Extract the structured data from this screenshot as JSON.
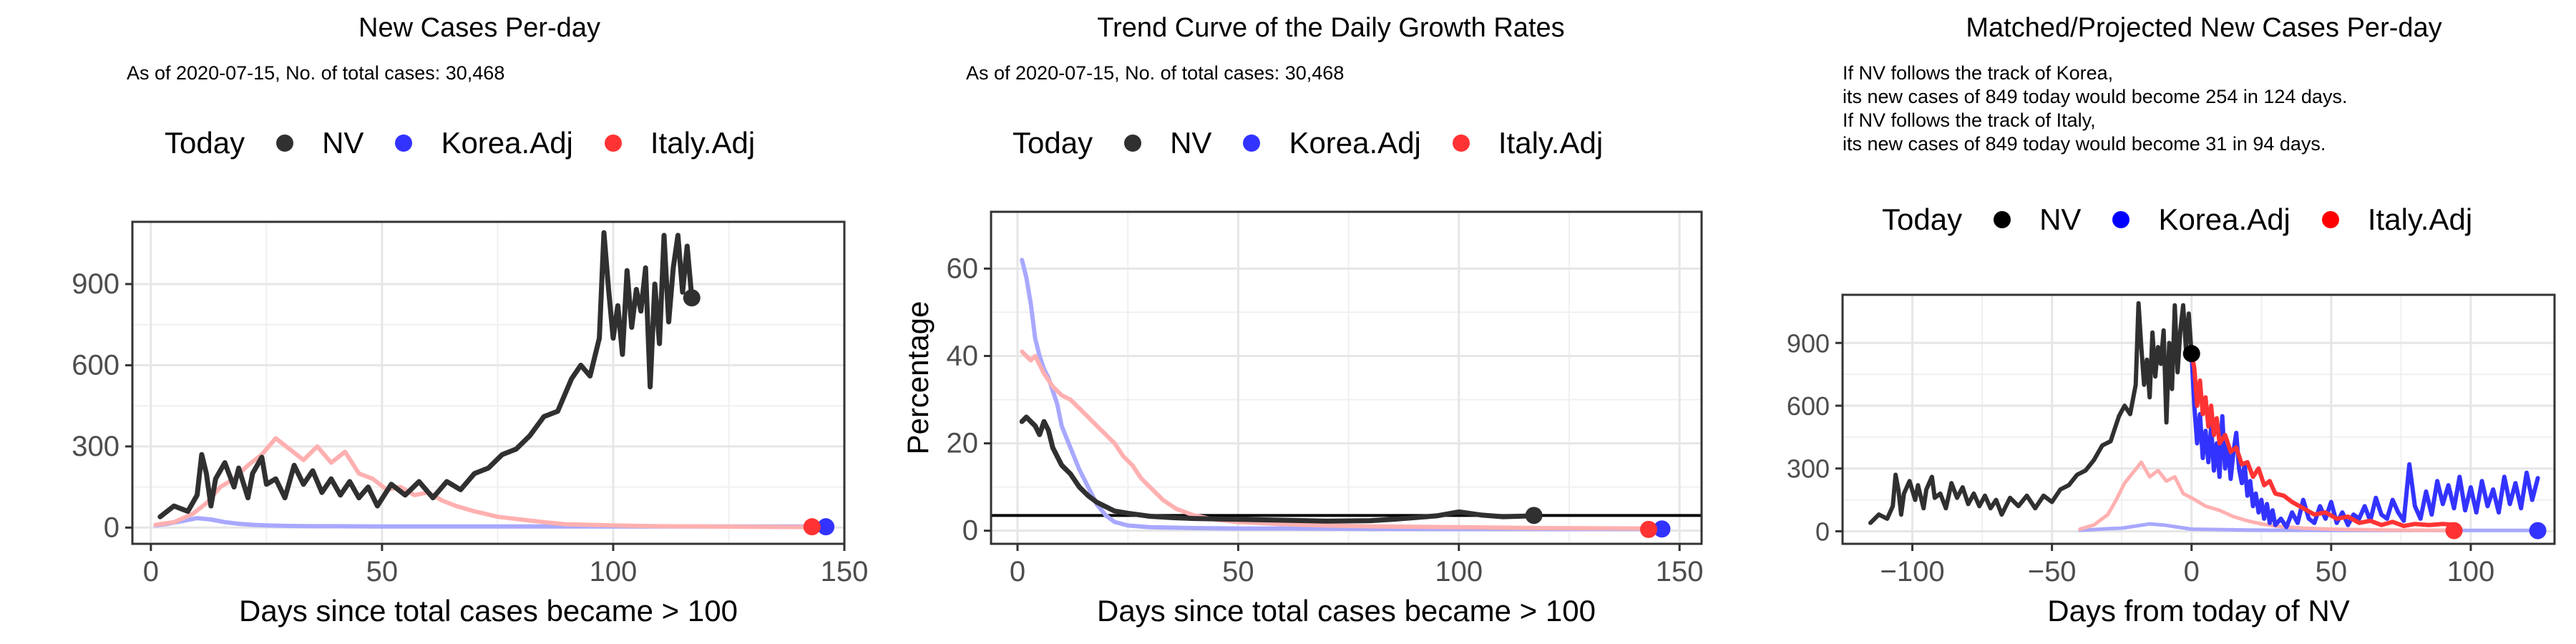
{
  "panels": [
    {
      "title": "New Cases Per-day",
      "subtitle": [
        "As of 2020-07-15, No. of total cases: 30,468"
      ],
      "legend": {
        "title": "Today",
        "items": [
          "NV",
          "Korea.Adj",
          "Italy.Adj"
        ]
      }
    },
    {
      "title": "Trend Curve of the Daily Growth Rates",
      "subtitle": [
        "As of 2020-07-15, No. of total cases: 30,468"
      ],
      "legend": {
        "title": "Today",
        "items": [
          "NV",
          "Korea.Adj",
          "Italy.Adj"
        ]
      }
    },
    {
      "title": "Matched/Projected New Cases Per-day",
      "subtitle": [
        "If NV follows the track of Korea,",
        "its new cases of 849 today would become 254 in 124 days.",
        "If NV follows the track of Italy,",
        "its new cases of 849 today would become 31 in 94 days."
      ],
      "legend": {
        "title": "Today",
        "items": [
          "NV",
          "Korea.Adj",
          "Italy.Adj"
        ]
      }
    }
  ],
  "colors": {
    "nv": "#303030",
    "nv_dot": "#000000",
    "korea": "#3333ff",
    "korea_faint": "#a8a8ff",
    "italy": "#ff3333",
    "italy_faint": "#ffb0b0",
    "legend_nv": "#303030",
    "legend_korea": "#3333ff",
    "legend_italy": "#ff3333",
    "legend3_nv": "#000000",
    "legend3_korea": "#0000ff",
    "legend3_italy": "#ff0000"
  },
  "chart_data": [
    {
      "type": "line",
      "title": "New Cases Per-day",
      "xlabel": "Days since total cases became > 100",
      "ylabel": "",
      "xlim": [
        -4,
        150
      ],
      "ylim": [
        -60,
        1130
      ],
      "xticks": [
        0,
        50,
        100,
        150
      ],
      "yticks": [
        0,
        300,
        600,
        900
      ],
      "grid": true,
      "legend_position": "top",
      "series": [
        {
          "name": "NV",
          "x": [
            2,
            5,
            8,
            10,
            11,
            12,
            13,
            14,
            16,
            18,
            19,
            21,
            22,
            24,
            25,
            27,
            29,
            31,
            33,
            35,
            37,
            39,
            41,
            43,
            45,
            47,
            49,
            52,
            55,
            58,
            61,
            64,
            67,
            70,
            73,
            76,
            79,
            82,
            85,
            88,
            91,
            93,
            95,
            97,
            98,
            99,
            100,
            101,
            102,
            103,
            104,
            105,
            106,
            107,
            108,
            109,
            110,
            111,
            112,
            113,
            114,
            115,
            116,
            117
          ],
          "y": [
            40,
            80,
            60,
            120,
            270,
            200,
            80,
            180,
            240,
            150,
            220,
            110,
            200,
            260,
            160,
            180,
            110,
            230,
            160,
            210,
            130,
            180,
            120,
            170,
            110,
            150,
            80,
            160,
            120,
            170,
            110,
            170,
            140,
            200,
            220,
            270,
            290,
            340,
            410,
            430,
            550,
            600,
            560,
            700,
            1090,
            880,
            700,
            820,
            640,
            950,
            740,
            880,
            800,
            960,
            520,
            900,
            680,
            1080,
            760,
            960,
            1080,
            870,
            1040,
            849
          ]
        },
        {
          "name": "Korea.Adj",
          "x": [
            1,
            4,
            7,
            10,
            13,
            16,
            19,
            22,
            25,
            30,
            35,
            40,
            50,
            60,
            70,
            80,
            90,
            100,
            110,
            120,
            130,
            140,
            146
          ],
          "y": [
            8,
            15,
            25,
            35,
            30,
            20,
            14,
            10,
            8,
            6,
            5,
            5,
            4,
            4,
            4,
            4,
            4,
            4,
            4,
            4,
            4,
            4,
            4
          ]
        },
        {
          "name": "Italy.Adj",
          "x": [
            1,
            5,
            9,
            12,
            15,
            18,
            21,
            24,
            27,
            30,
            33,
            36,
            39,
            42,
            45,
            48,
            51,
            54,
            57,
            60,
            63,
            66,
            70,
            75,
            80,
            85,
            90,
            100,
            110,
            120,
            130,
            143
          ],
          "y": [
            10,
            20,
            50,
            90,
            150,
            180,
            230,
            270,
            330,
            290,
            250,
            300,
            240,
            280,
            200,
            180,
            140,
            150,
            120,
            130,
            100,
            80,
            60,
            40,
            30,
            20,
            12,
            8,
            5,
            4,
            3,
            2
          ]
        }
      ],
      "today_points": [
        {
          "name": "NV",
          "x": 117,
          "y": 849
        },
        {
          "name": "Korea.Adj",
          "x": 146,
          "y": 3
        },
        {
          "name": "Italy.Adj",
          "x": 143,
          "y": 3
        }
      ]
    },
    {
      "type": "line",
      "title": "Trend Curve of the Daily Growth Rates",
      "xlabel": "Days since total cases became > 100",
      "ylabel": "Percentage",
      "xlim": [
        -6,
        155
      ],
      "ylim": [
        -3,
        73
      ],
      "xticks": [
        0,
        50,
        100,
        150
      ],
      "yticks": [
        0,
        20,
        40,
        60
      ],
      "grid": true,
      "hline": 3.5,
      "legend_position": "top",
      "series": [
        {
          "name": "NV",
          "x": [
            1,
            2,
            3,
            4,
            5,
            6,
            7,
            8,
            9,
            10,
            12,
            14,
            16,
            18,
            20,
            22,
            25,
            30,
            35,
            40,
            50,
            60,
            70,
            80,
            85,
            90,
            95,
            100,
            105,
            110,
            117
          ],
          "y": [
            25,
            26,
            25,
            24,
            22,
            25,
            23,
            19,
            17,
            15,
            13,
            10,
            8,
            6.5,
            5.5,
            4.5,
            4,
            3.3,
            3,
            2.8,
            2.6,
            2.4,
            2.2,
            2.3,
            2.6,
            3,
            3.4,
            4.3,
            3.6,
            3.2,
            3.4
          ]
        },
        {
          "name": "Korea.Adj",
          "x": [
            1,
            2,
            3,
            4,
            5,
            6,
            7,
            8,
            9,
            10,
            12,
            14,
            16,
            18,
            20,
            22,
            25,
            30,
            40,
            50,
            60,
            80,
            100,
            120,
            146
          ],
          "y": [
            62,
            58,
            52,
            44,
            40,
            37,
            35,
            32,
            29,
            24,
            19,
            14,
            10,
            6,
            3.5,
            2,
            1.2,
            0.8,
            0.6,
            0.5,
            0.5,
            0.4,
            0.4,
            0.4,
            0.4
          ]
        },
        {
          "name": "Italy.Adj",
          "x": [
            1,
            2,
            3,
            4,
            5,
            6,
            8,
            10,
            12,
            14,
            16,
            18,
            20,
            22,
            24,
            26,
            28,
            30,
            33,
            36,
            40,
            45,
            50,
            60,
            70,
            80,
            100,
            120,
            143
          ],
          "y": [
            41,
            40,
            39,
            40,
            38,
            36,
            33,
            31,
            30,
            28,
            26,
            24,
            22,
            20,
            17,
            15,
            12,
            10,
            7,
            5,
            3.5,
            2.5,
            2,
            1.5,
            1.2,
            1,
            0.8,
            0.6,
            0.5
          ]
        }
      ],
      "today_points": [
        {
          "name": "NV",
          "x": 117,
          "y": 3.5
        },
        {
          "name": "Korea.Adj",
          "x": 146,
          "y": 0.4
        },
        {
          "name": "Italy.Adj",
          "x": 143,
          "y": 0.3
        }
      ]
    },
    {
      "type": "line",
      "title": "Matched/Projected New Cases Per-day",
      "xlabel": "Days from today of NV",
      "ylabel": "",
      "xlim": [
        -125,
        130
      ],
      "ylim": [
        -60,
        1130
      ],
      "xticks": [
        -100,
        -50,
        0,
        50,
        100
      ],
      "yticks": [
        0,
        300,
        600,
        900
      ],
      "grid": true,
      "legend_position": "top",
      "series": [
        {
          "name": "NV",
          "x": [
            -115,
            -112,
            -109,
            -107,
            -106,
            -105,
            -104,
            -103,
            -101,
            -99,
            -98,
            -96,
            -95,
            -93,
            -92,
            -90,
            -88,
            -86,
            -84,
            -82,
            -80,
            -78,
            -76,
            -74,
            -72,
            -70,
            -68,
            -65,
            -62,
            -59,
            -56,
            -53,
            -50,
            -47,
            -44,
            -41,
            -38,
            -35,
            -32,
            -29,
            -26,
            -24,
            -22,
            -20,
            -19,
            -18,
            -17,
            -16,
            -15,
            -14,
            -13,
            -12,
            -11,
            -10,
            -9,
            -8,
            -7,
            -6,
            -5,
            -4,
            -3,
            -2,
            -1,
            0
          ],
          "y": [
            40,
            80,
            60,
            120,
            270,
            200,
            80,
            180,
            240,
            150,
            220,
            110,
            200,
            260,
            160,
            180,
            110,
            230,
            160,
            210,
            130,
            180,
            120,
            170,
            110,
            150,
            80,
            160,
            120,
            170,
            110,
            170,
            140,
            200,
            220,
            270,
            290,
            340,
            410,
            430,
            550,
            600,
            560,
            700,
            1090,
            880,
            700,
            820,
            640,
            950,
            740,
            880,
            800,
            960,
            520,
            900,
            680,
            1080,
            760,
            960,
            1080,
            870,
            1040,
            849
          ]
        },
        {
          "name": "Korea.Adj (history)",
          "x": [
            -40,
            -35,
            -30,
            -25,
            -20,
            -15,
            -10,
            -5,
            0,
            10,
            20,
            30,
            40,
            50,
            60,
            70,
            80,
            90,
            100,
            110,
            124
          ],
          "y": [
            5,
            8,
            12,
            15,
            25,
            35,
            30,
            20,
            10,
            8,
            6,
            5,
            5,
            4,
            4,
            4,
            4,
            4,
            4,
            4,
            4
          ]
        },
        {
          "name": "Italy.Adj (history)",
          "x": [
            -40,
            -35,
            -30,
            -27,
            -24,
            -21,
            -18,
            -15,
            -12,
            -9,
            -6,
            -3,
            0,
            5,
            10,
            15,
            20,
            25,
            30,
            40,
            50,
            60,
            70,
            80,
            94
          ],
          "y": [
            10,
            30,
            80,
            150,
            230,
            280,
            330,
            260,
            290,
            240,
            260,
            180,
            160,
            120,
            100,
            70,
            50,
            35,
            25,
            15,
            10,
            8,
            6,
            5,
            4
          ]
        },
        {
          "name": "Korea.Adj",
          "x": [
            0,
            1,
            2,
            3,
            4,
            5,
            6,
            7,
            8,
            9,
            10,
            11,
            12,
            13,
            14,
            15,
            16,
            17,
            18,
            19,
            20,
            21,
            22,
            23,
            24,
            25,
            26,
            27,
            28,
            29,
            30,
            32,
            34,
            36,
            38,
            40,
            42,
            44,
            46,
            48,
            50,
            52,
            54,
            56,
            58,
            60,
            62,
            64,
            66,
            68,
            70,
            72,
            74,
            76,
            78,
            80,
            82,
            84,
            86,
            88,
            90,
            92,
            94,
            96,
            98,
            100,
            102,
            104,
            106,
            108,
            110,
            112,
            114,
            116,
            118,
            120,
            122,
            124
          ],
          "y": [
            849,
            600,
            420,
            560,
            350,
            480,
            330,
            500,
            290,
            420,
            260,
            550,
            300,
            410,
            250,
            380,
            470,
            300,
            230,
            320,
            170,
            240,
            120,
            180,
            90,
            150,
            60,
            130,
            40,
            100,
            30,
            60,
            20,
            90,
            40,
            150,
            60,
            40,
            120,
            60,
            140,
            40,
            90,
            30,
            80,
            60,
            120,
            50,
            160,
            80,
            60,
            150,
            90,
            50,
            320,
            120,
            60,
            190,
            80,
            240,
            130,
            220,
            110,
            260,
            100,
            210,
            90,
            240,
            120,
            200,
            90,
            260,
            130,
            230,
            110,
            280,
            150,
            254
          ]
        },
        {
          "name": "Italy.Adj",
          "x": [
            0,
            1,
            2,
            3,
            4,
            5,
            6,
            7,
            8,
            9,
            10,
            12,
            14,
            16,
            18,
            20,
            22,
            24,
            26,
            28,
            30,
            33,
            36,
            40,
            44,
            48,
            52,
            56,
            60,
            64,
            68,
            72,
            76,
            80,
            85,
            90,
            94
          ],
          "y": [
            849,
            780,
            600,
            720,
            560,
            640,
            500,
            600,
            460,
            540,
            420,
            460,
            380,
            400,
            320,
            330,
            260,
            300,
            220,
            240,
            180,
            170,
            140,
            110,
            80,
            90,
            60,
            70,
            40,
            50,
            30,
            45,
            25,
            35,
            30,
            35,
            31
          ]
        }
      ],
      "today_points": [
        {
          "name": "NV",
          "x": 0,
          "y": 849
        },
        {
          "name": "Korea.Adj",
          "x": 124,
          "y": 3
        },
        {
          "name": "Italy.Adj",
          "x": 94,
          "y": 3
        }
      ]
    }
  ]
}
